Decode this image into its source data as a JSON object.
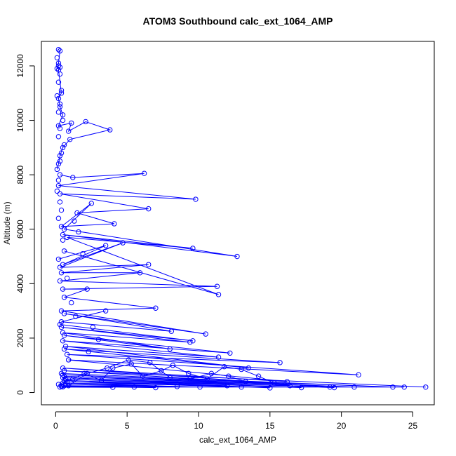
{
  "chart_data": {
    "type": "line",
    "title": "ATOM3 Southbound calc_ext_1064_AMP",
    "xlabel": "calc_ext_1064_AMP",
    "ylabel": "Altitude (m)",
    "xlim": [
      -1.0,
      26.5
    ],
    "ylim": [
      -450,
      12900
    ],
    "x_ticks": [
      0,
      5,
      10,
      15,
      20,
      25
    ],
    "y_ticks": [
      0,
      2000,
      4000,
      6000,
      8000,
      10000,
      12000
    ],
    "line_color": "#0000ff",
    "marker": "open-circle",
    "series": [
      {
        "x": [
          0.2,
          0.3,
          0.2,
          0.1,
          0.3,
          0.2,
          0.4,
          0.2,
          0.3,
          0.5,
          0.2,
          1.1,
          0.9,
          2.1,
          3.8,
          1.0,
          0.5,
          0.3,
          0.2,
          0.1
        ],
        "values": [
          12600,
          12550,
          12100,
          11900,
          11950,
          11850,
          11000,
          10800,
          10500,
          10200,
          9800,
          9900,
          9600,
          9950,
          9650,
          9300,
          9000,
          8700,
          8400,
          8200
        ]
      },
      {
        "x": [
          0.3,
          1.2,
          6.2,
          0.2,
          9.8,
          0.3,
          6.5,
          1.5,
          4.1,
          0.4,
          2.5,
          0.6,
          12.7,
          0.5,
          9.6,
          0.8,
          11.4,
          0.6
        ],
        "values": [
          8000,
          7900,
          8050,
          7600,
          7100,
          7300,
          6750,
          6600,
          6200,
          6100,
          6950,
          6000,
          5000,
          5800,
          5300,
          5700,
          3600,
          5200
        ]
      },
      {
        "x": [
          0.2,
          3.5,
          0.5,
          4.7,
          0.3,
          6.5,
          0.4,
          5.9,
          0.3,
          11.3,
          0.5,
          2.2,
          0.6,
          7.0,
          0.4,
          10.5,
          0.6,
          8.1,
          0.4,
          3.5
        ],
        "values": [
          4900,
          5400,
          4700,
          5500,
          4600,
          4700,
          4400,
          4400,
          4100,
          3900,
          3800,
          3800,
          3500,
          3100,
          3000,
          2150,
          2900,
          2250,
          2600,
          3000
        ]
      },
      {
        "x": [
          0.3,
          9.6,
          0.4,
          9.4,
          0.5,
          8.0,
          0.6,
          12.2,
          0.5,
          11.4,
          0.7,
          13.5,
          0.6,
          15.7,
          0.8,
          21.2,
          0.9,
          16.2,
          0.5,
          19.2,
          0.6,
          25.9
        ],
        "values": [
          2500,
          1900,
          2400,
          1850,
          2200,
          1600,
          2100,
          1450,
          1900,
          1300,
          1700,
          900,
          1600,
          1100,
          1400,
          650,
          1200,
          400,
          900,
          200,
          800,
          200
        ]
      },
      {
        "x": [
          0.4,
          23.6,
          0.5,
          20.9,
          0.6,
          19.5,
          0.5,
          17.2,
          0.7,
          15.0,
          0.6,
          13.0,
          0.8,
          12.0,
          0.5,
          10.1,
          0.7,
          8.5,
          0.6,
          7.0,
          0.4,
          5.5,
          0.5,
          4.0,
          0.3,
          24.4
        ],
        "values": [
          700,
          200,
          650,
          200,
          600,
          180,
          550,
          180,
          500,
          170,
          450,
          200,
          400,
          250,
          350,
          200,
          300,
          220,
          250,
          180,
          230,
          200,
          210,
          190,
          200,
          200
        ]
      },
      {
        "x": [
          0.2,
          1.2,
          2.0,
          3.2,
          4.0,
          5.3,
          6.1,
          7.4,
          8.2,
          9.3,
          10.6,
          11.8,
          13.0,
          14.2,
          15.3,
          16.4,
          13.3,
          12.1,
          10.9,
          9.4,
          8.0,
          6.6,
          5.1,
          3.6,
          2.2,
          0.9
        ],
        "values": [
          300,
          500,
          700,
          450,
          900,
          1050,
          600,
          800,
          1000,
          700,
          500,
          950,
          850,
          600,
          350,
          250,
          400,
          600,
          700,
          500,
          550,
          1100,
          1200,
          900,
          700,
          250
        ]
      }
    ],
    "scatter_extra": {
      "x": [
        0.1,
        0.2,
        0.3,
        0.2,
        0.4,
        0.1,
        0.3,
        0.2,
        0.5,
        0.3,
        0.2,
        0.6,
        0.4,
        0.3,
        0.2,
        0.1,
        0.3,
        0.4,
        0.2,
        0.5,
        1.3,
        1.6,
        1.9,
        0.8,
        1.1,
        2.6,
        3.0,
        2.3,
        1.4,
        0.9
      ],
      "values": [
        12300,
        12000,
        11700,
        11400,
        11100,
        10900,
        10600,
        10300,
        10000,
        9700,
        9400,
        9100,
        8800,
        8500,
        7800,
        7400,
        7000,
        6700,
        6400,
        5600,
        6300,
        5900,
        5100,
        4200,
        3300,
        2400,
        1950,
        1500,
        2800,
        1200
      ]
    }
  }
}
